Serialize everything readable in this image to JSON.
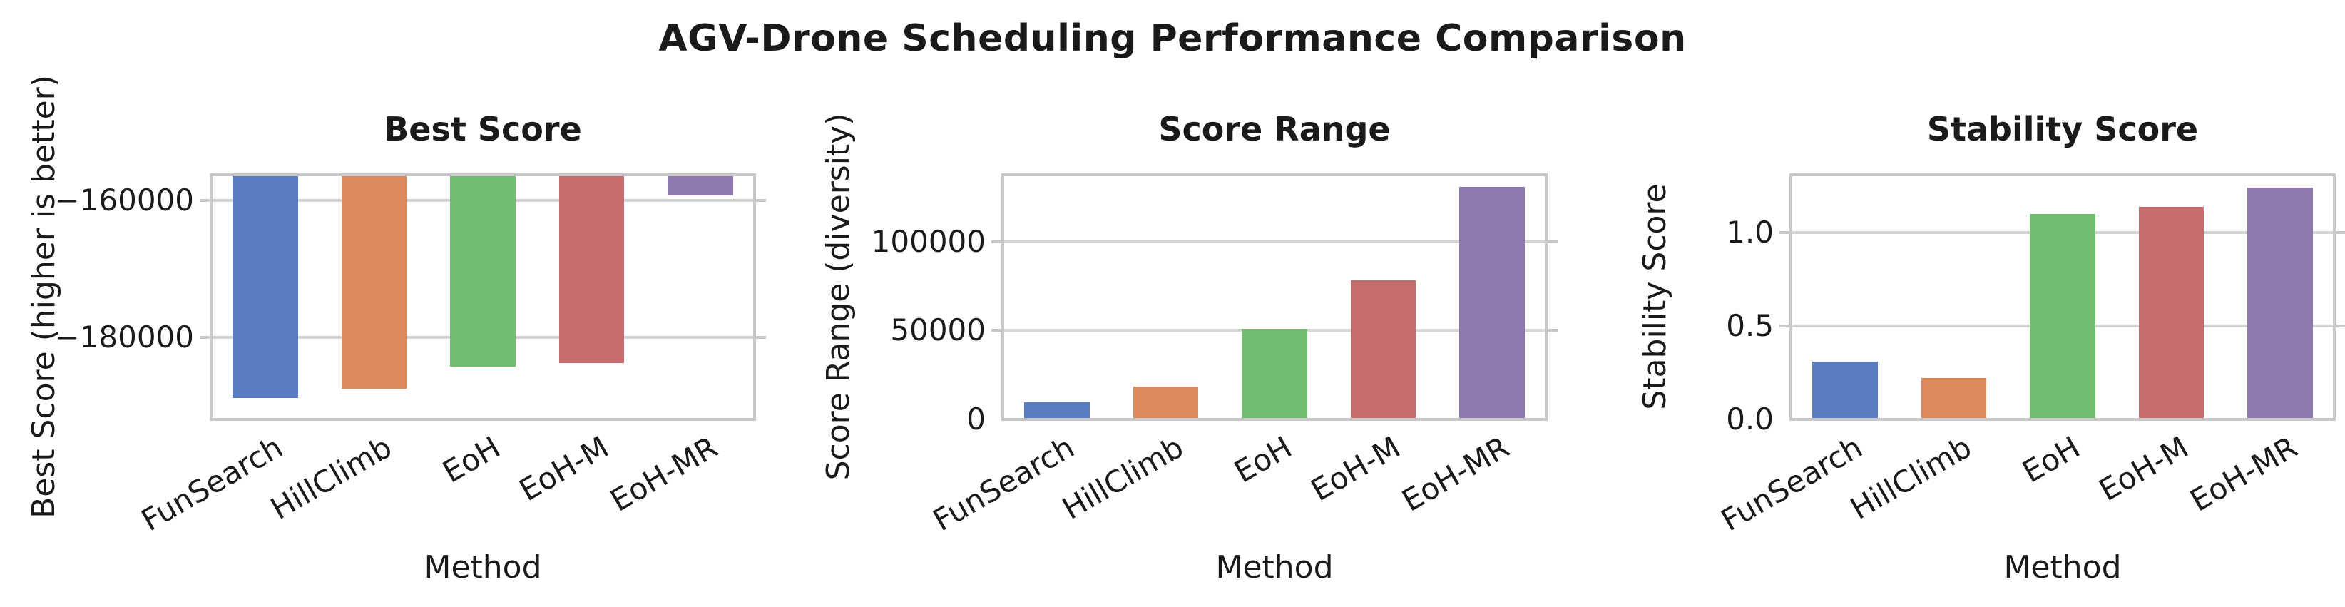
{
  "title": "AGV-Drone Scheduling Performance Comparison",
  "colors": {
    "bars": [
      "#5a7cc0",
      "#da8a5c",
      "#73bd73",
      "#c56c6e",
      "#8f77af"
    ],
    "grid": "#d4d4d4",
    "spine": "#c8c8c8",
    "text": "#1a1a1a"
  },
  "chart_data": [
    {
      "type": "bar",
      "title": "Best Score",
      "xlabel": "Method",
      "ylabel": "Best Score (higher is better)",
      "categories": [
        "FunSearch",
        "HillClimb",
        "EoH",
        "EoH-M",
        "EoH-MR"
      ],
      "values": [
        -188900,
        -187500,
        -184300,
        -183800,
        -159200
      ],
      "ylim": [
        -192000,
        -156200
      ],
      "grid": true,
      "legend": false,
      "yticks": [
        {
          "value": -180000,
          "label": "−180000"
        },
        {
          "value": -160000,
          "label": "−160000"
        }
      ]
    },
    {
      "type": "bar",
      "title": "Score Range",
      "xlabel": "Method",
      "ylabel": "Score Range (diversity)",
      "categories": [
        "FunSearch",
        "HillClimb",
        "EoH",
        "EoH-M",
        "EoH-MR"
      ],
      "values": [
        9500,
        18500,
        51000,
        78000,
        130500
      ],
      "ylim": [
        0,
        137500
      ],
      "grid": true,
      "legend": false,
      "yticks": [
        {
          "value": 0,
          "label": "0"
        },
        {
          "value": 50000,
          "label": "50000"
        },
        {
          "value": 100000,
          "label": "100000"
        }
      ]
    },
    {
      "type": "bar",
      "title": "Stability Score",
      "xlabel": "Method",
      "ylabel": "Stability Score",
      "categories": [
        "FunSearch",
        "HillClimb",
        "EoH",
        "EoH-M",
        "EoH-MR"
      ],
      "values": [
        0.31,
        0.22,
        1.1,
        1.14,
        1.24
      ],
      "ylim": [
        0,
        1.31
      ],
      "grid": true,
      "legend": false,
      "yticks": [
        {
          "value": 0,
          "label": "0.0"
        },
        {
          "value": 0.5,
          "label": "0.5"
        },
        {
          "value": 1.0,
          "label": "1.0"
        }
      ]
    }
  ]
}
